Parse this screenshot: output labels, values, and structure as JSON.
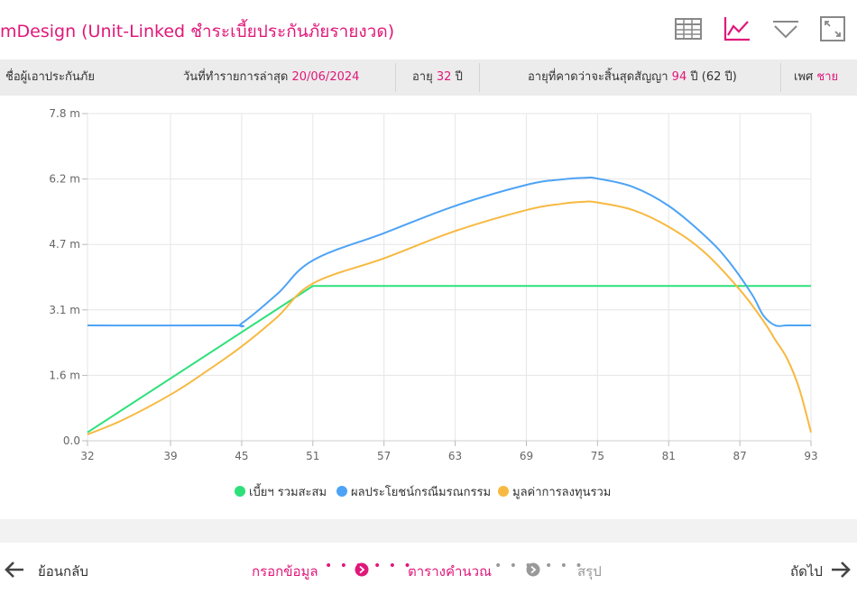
{
  "header": {
    "title": "mDesign (Unit-Linked ชำระเบี้ยประกันภัยรายงวด)",
    "toolbar_icons": [
      "table-icon",
      "line-chart-icon",
      "filter-icon",
      "fullscreen-icon"
    ],
    "active_icon": "line-chart-icon",
    "accent_color": "#e0187a"
  },
  "info": {
    "insured_label": "ชื่อผู้เอาประกันภัย",
    "date_label": "วันที่ทำรายการล่าสุด",
    "date_value": "20/06/2024",
    "age_label": "อายุ",
    "age_value": "32",
    "age_unit": "ปี",
    "expected_age_label": "อายุที่คาดว่าจะสิ้นสุดสัญญา",
    "expected_age_value": "94",
    "expected_age_unit": "ปี",
    "expected_years": "(62 ปี)",
    "gender_label": "เพศ",
    "gender_value": "ชาย"
  },
  "chart_data": {
    "type": "line",
    "xlabel": "",
    "ylabel": "",
    "xlim": [
      32,
      93
    ],
    "ylim": [
      0,
      7.8
    ],
    "x_ticks": [
      "32",
      "39",
      "45",
      "51",
      "57",
      "63",
      "69",
      "75",
      "81",
      "87",
      "93"
    ],
    "y_ticks": [
      "0.0",
      "1.6 m",
      "3.1 m",
      "4.7 m",
      "6.2 m",
      "7.8 m"
    ],
    "grid": true,
    "legend_position": "bottom",
    "series": [
      {
        "name": "เบี้ยฯ รวมสะสม",
        "color": "#2ee07a",
        "x": [
          32,
          51,
          93
        ],
        "y": [
          0.2,
          3.69,
          3.69
        ]
      },
      {
        "name": "ผลประโยชน์กรณีมรณกรรม",
        "color": "#4da3f5",
        "x": [
          32,
          44,
          45,
          48,
          51,
          57,
          63,
          69,
          72,
          74,
          75,
          78,
          81,
          84,
          86,
          88,
          89,
          90,
          91,
          93
        ],
        "y": [
          2.75,
          2.75,
          2.8,
          3.5,
          4.3,
          4.95,
          5.6,
          6.1,
          6.23,
          6.27,
          6.25,
          6.05,
          5.6,
          4.9,
          4.3,
          3.5,
          2.98,
          2.75,
          2.75,
          2.75
        ]
      },
      {
        "name": "มูลค่าการลงทุนรวม",
        "color": "#f7b941",
        "x": [
          32,
          35,
          39,
          42,
          45,
          48,
          51,
          57,
          63,
          69,
          72,
          74,
          75,
          78,
          81,
          84,
          87,
          89,
          90,
          91,
          92,
          93
        ],
        "y": [
          0.15,
          0.5,
          1.1,
          1.65,
          2.25,
          2.95,
          3.75,
          4.35,
          5.0,
          5.5,
          5.65,
          5.7,
          5.68,
          5.5,
          5.1,
          4.5,
          3.6,
          2.85,
          2.4,
          1.95,
          1.25,
          0.2
        ]
      }
    ]
  },
  "footer": {
    "back_label": "ย้อนกลับ",
    "step1_label": "กรอกข้อมูล",
    "step2_label": "ตารางคำนวณ",
    "step3_label": "สรุป",
    "next_label": "ถัดไป"
  }
}
